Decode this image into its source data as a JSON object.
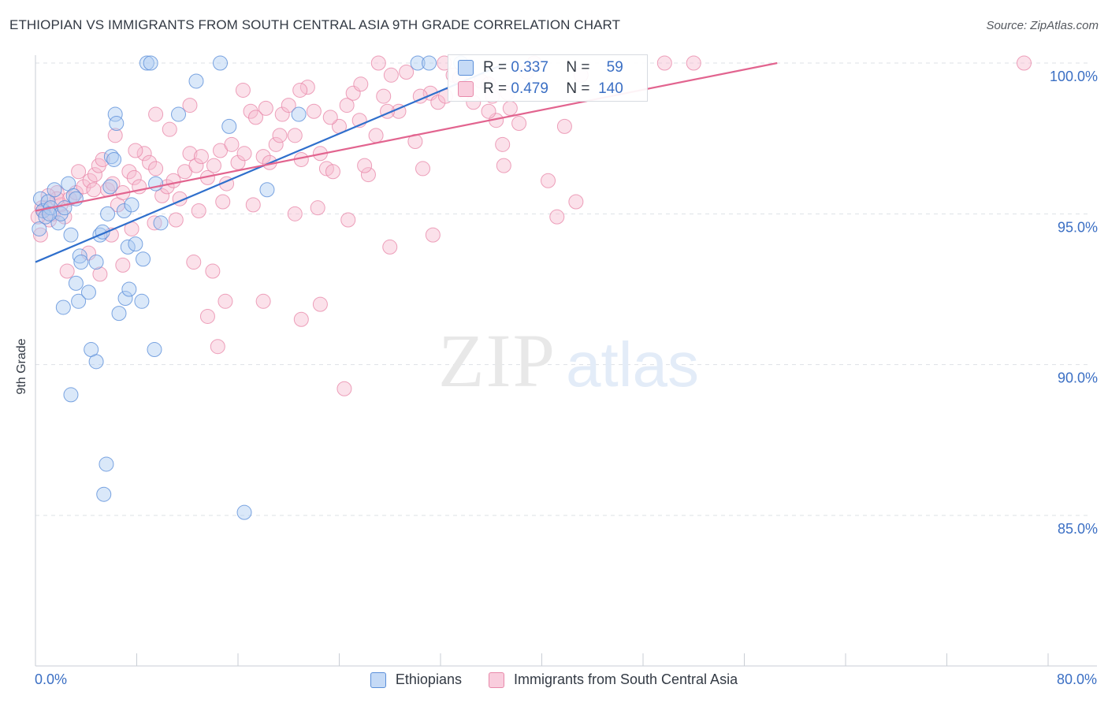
{
  "title": "ETHIOPIAN VS IMMIGRANTS FROM SOUTH CENTRAL ASIA 9TH GRADE CORRELATION CHART",
  "source": "Source: ZipAtlas.com",
  "watermark": {
    "zip": "ZIP",
    "atlas": "atlas"
  },
  "colors": {
    "blue_fill": "#aecbf2",
    "blue_stroke": "#5b8fd9",
    "blue_line": "#2f6fcc",
    "pink_fill": "#f6bdd1",
    "pink_stroke": "#e889aa",
    "pink_line": "#e2648f",
    "axis_label": "#3b6fc4",
    "grid": "#dde1e6"
  },
  "legend": {
    "rows": [
      {
        "r_label": "R =",
        "r_value": "0.337",
        "n_label": "N =",
        "n_value": "59"
      },
      {
        "r_label": "R =",
        "r_value": "0.479",
        "n_label": "N =",
        "n_value": "140"
      }
    ]
  },
  "chart_data": {
    "type": "scatter",
    "title": "ETHIOPIAN VS IMMIGRANTS FROM SOUTH CENTRAL ASIA 9TH GRADE CORRELATION CHART",
    "xlabel": "",
    "ylabel": "9th Grade",
    "xlim": [
      0,
      80
    ],
    "ylim": [
      80.5,
      100.8
    ],
    "x_tick_labels": [
      "0.0%",
      "80.0%"
    ],
    "y_ticks": [
      85,
      90,
      95,
      100
    ],
    "y_tick_labels": [
      "85.0%",
      "90.0%",
      "95.0%",
      "100.0%"
    ],
    "grid": true,
    "legend_position": "bottom",
    "series": [
      {
        "name": "Ethiopians",
        "color": "#5b8fd9",
        "r": 0.337,
        "n": 59,
        "trend": {
          "x": [
            0,
            37.2
          ],
          "y": [
            93.4,
            100.0
          ]
        },
        "points": [
          [
            0.3,
            94.5
          ],
          [
            0.4,
            95.5
          ],
          [
            0.6,
            95.1
          ],
          [
            0.8,
            94.9
          ],
          [
            1.0,
            95.4
          ],
          [
            1.2,
            95.2
          ],
          [
            1.5,
            95.8
          ],
          [
            1.8,
            94.7
          ],
          [
            2.0,
            95.0
          ],
          [
            2.3,
            95.2
          ],
          [
            2.6,
            96.0
          ],
          [
            2.8,
            94.3
          ],
          [
            3.0,
            95.6
          ],
          [
            3.2,
            95.5
          ],
          [
            3.5,
            93.6
          ],
          [
            3.6,
            93.4
          ],
          [
            3.2,
            92.7
          ],
          [
            3.4,
            92.1
          ],
          [
            2.2,
            91.9
          ],
          [
            4.2,
            92.4
          ],
          [
            4.8,
            93.4
          ],
          [
            5.1,
            94.3
          ],
          [
            5.3,
            94.4
          ],
          [
            5.7,
            95.0
          ],
          [
            6.0,
            96.9
          ],
          [
            6.2,
            96.8
          ],
          [
            5.9,
            95.9
          ],
          [
            6.3,
            98.3
          ],
          [
            6.4,
            98.0
          ],
          [
            6.6,
            91.7
          ],
          [
            7.0,
            95.1
          ],
          [
            7.3,
            93.9
          ],
          [
            7.1,
            92.2
          ],
          [
            7.4,
            92.5
          ],
          [
            7.6,
            95.3
          ],
          [
            7.9,
            94.0
          ],
          [
            8.4,
            92.1
          ],
          [
            8.5,
            93.5
          ],
          [
            8.8,
            100.0
          ],
          [
            9.1,
            100.0
          ],
          [
            9.5,
            96.0
          ],
          [
            9.9,
            94.7
          ],
          [
            11.3,
            98.3
          ],
          [
            12.7,
            99.4
          ],
          [
            14.6,
            100.0
          ],
          [
            15.3,
            97.9
          ],
          [
            16.5,
            85.1
          ],
          [
            18.3,
            95.8
          ],
          [
            20.8,
            98.3
          ],
          [
            30.2,
            100.0
          ],
          [
            31.1,
            100.0
          ],
          [
            33.6,
            100.0
          ],
          [
            4.4,
            90.5
          ],
          [
            4.8,
            90.1
          ],
          [
            9.4,
            90.5
          ],
          [
            2.8,
            89.0
          ],
          [
            5.6,
            86.7
          ],
          [
            5.4,
            85.7
          ],
          [
            1.1,
            95.0
          ]
        ]
      },
      {
        "name": "Immigrants from South Central Asia",
        "color": "#e889aa",
        "r": 0.479,
        "n": 140,
        "trend": {
          "x": [
            0,
            58.6
          ],
          "y": [
            95.1,
            100.0
          ]
        },
        "points": [
          [
            0.4,
            94.3
          ],
          [
            0.6,
            95.1
          ],
          [
            0.8,
            95.2
          ],
          [
            1.1,
            94.8
          ],
          [
            1.4,
            95.0
          ],
          [
            1.7,
            95.7
          ],
          [
            2.0,
            95.3
          ],
          [
            2.3,
            94.9
          ],
          [
            2.7,
            95.5
          ],
          [
            3.2,
            95.7
          ],
          [
            3.8,
            95.9
          ],
          [
            4.3,
            96.1
          ],
          [
            4.7,
            96.3
          ],
          [
            5.0,
            96.6
          ],
          [
            5.3,
            96.8
          ],
          [
            5.7,
            95.8
          ],
          [
            6.1,
            96.0
          ],
          [
            6.5,
            95.3
          ],
          [
            6.9,
            95.7
          ],
          [
            7.4,
            96.4
          ],
          [
            7.8,
            96.2
          ],
          [
            8.2,
            95.9
          ],
          [
            8.6,
            97.0
          ],
          [
            9.0,
            96.7
          ],
          [
            9.5,
            96.5
          ],
          [
            10.0,
            95.6
          ],
          [
            10.4,
            95.9
          ],
          [
            10.9,
            96.1
          ],
          [
            11.4,
            95.5
          ],
          [
            11.8,
            96.4
          ],
          [
            12.2,
            97.0
          ],
          [
            12.7,
            96.6
          ],
          [
            13.1,
            96.9
          ],
          [
            13.6,
            96.2
          ],
          [
            14.1,
            96.6
          ],
          [
            14.6,
            97.1
          ],
          [
            15.1,
            96.0
          ],
          [
            15.5,
            97.3
          ],
          [
            16.0,
            96.7
          ],
          [
            16.5,
            97.0
          ],
          [
            17.0,
            98.4
          ],
          [
            17.4,
            98.2
          ],
          [
            18.0,
            96.9
          ],
          [
            18.5,
            96.7
          ],
          [
            19.0,
            97.3
          ],
          [
            19.5,
            98.3
          ],
          [
            20.0,
            98.6
          ],
          [
            20.5,
            97.6
          ],
          [
            21.0,
            96.8
          ],
          [
            21.5,
            99.2
          ],
          [
            22.0,
            98.4
          ],
          [
            22.5,
            97.0
          ],
          [
            23.0,
            96.5
          ],
          [
            23.5,
            96.4
          ],
          [
            24.0,
            97.9
          ],
          [
            24.6,
            98.6
          ],
          [
            25.1,
            99.0
          ],
          [
            25.7,
            99.3
          ],
          [
            26.3,
            96.3
          ],
          [
            26.9,
            97.6
          ],
          [
            27.5,
            98.9
          ],
          [
            28.1,
            99.6
          ],
          [
            28.7,
            98.4
          ],
          [
            29.3,
            99.7
          ],
          [
            30.0,
            97.4
          ],
          [
            30.6,
            96.5
          ],
          [
            31.2,
            99.0
          ],
          [
            31.8,
            98.7
          ],
          [
            32.4,
            98.9
          ],
          [
            33.0,
            99.6
          ],
          [
            33.5,
            99.5
          ],
          [
            34.0,
            99.0
          ],
          [
            34.6,
            98.7
          ],
          [
            35.2,
            99.4
          ],
          [
            35.8,
            99.3
          ],
          [
            36.4,
            98.1
          ],
          [
            36.9,
            97.3
          ],
          [
            37.5,
            98.5
          ],
          [
            38.2,
            98.0
          ],
          [
            38.8,
            99.7
          ],
          [
            39.4,
            100.0
          ],
          [
            42.7,
            95.4
          ],
          [
            31.4,
            94.3
          ],
          [
            26.0,
            96.6
          ],
          [
            28.0,
            93.9
          ],
          [
            24.7,
            94.8
          ],
          [
            22.3,
            95.2
          ],
          [
            20.5,
            95.0
          ],
          [
            17.2,
            95.3
          ],
          [
            14.8,
            95.4
          ],
          [
            12.9,
            95.1
          ],
          [
            11.1,
            94.8
          ],
          [
            9.4,
            94.7
          ],
          [
            7.6,
            94.5
          ],
          [
            6.0,
            94.3
          ],
          [
            4.2,
            93.7
          ],
          [
            2.5,
            93.1
          ],
          [
            5.1,
            93.0
          ],
          [
            6.9,
            93.3
          ],
          [
            12.5,
            93.4
          ],
          [
            14.0,
            93.1
          ],
          [
            15.0,
            92.1
          ],
          [
            18.0,
            92.1
          ],
          [
            21.0,
            91.5
          ],
          [
            22.5,
            92.0
          ],
          [
            24.4,
            89.2
          ],
          [
            14.4,
            90.6
          ],
          [
            13.6,
            91.6
          ],
          [
            41.2,
            94.9
          ],
          [
            40.5,
            96.1
          ],
          [
            10.6,
            97.8
          ],
          [
            12.2,
            98.6
          ],
          [
            9.5,
            98.3
          ],
          [
            18.2,
            98.5
          ],
          [
            16.4,
            99.1
          ],
          [
            23.3,
            98.2
          ],
          [
            27.1,
            100.0
          ],
          [
            32.3,
            100.0
          ],
          [
            41.8,
            97.9
          ],
          [
            43.1,
            99.6
          ],
          [
            49.7,
            100.0
          ],
          [
            52.0,
            100.0
          ],
          [
            78.1,
            100.0
          ],
          [
            37.0,
            96.6
          ],
          [
            37.3,
            99.0
          ],
          [
            35.8,
            98.4
          ],
          [
            36.1,
            98.9
          ],
          [
            30.4,
            98.9
          ],
          [
            19.3,
            97.6
          ],
          [
            20.9,
            99.1
          ],
          [
            25.6,
            98.1
          ],
          [
            27.8,
            98.4
          ],
          [
            3.4,
            96.4
          ],
          [
            4.6,
            95.8
          ],
          [
            1.7,
            95.5
          ],
          [
            0.2,
            94.9
          ],
          [
            0.5,
            95.2
          ],
          [
            1.0,
            95.6
          ],
          [
            6.3,
            97.6
          ],
          [
            7.9,
            97.1
          ]
        ]
      }
    ]
  }
}
